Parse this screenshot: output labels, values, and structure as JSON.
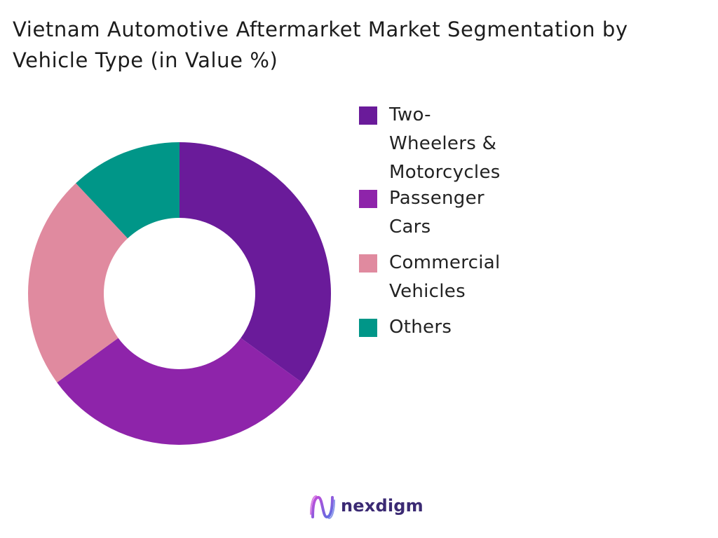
{
  "chart_data": {
    "type": "donut",
    "title": "Vietnam Automotive Aftermarket Market Segmentation by Vehicle Type (in Value %)",
    "title_lines": [
      "Vietnam Automotive Aftermarket Market Segmentation by",
      "Vehicle Type (in Value %)"
    ],
    "categories": [
      "Two-Wheelers & Motorcycles",
      "Passenger Cars",
      "Commercial Vehicles",
      "Others"
    ],
    "legend_labels": [
      "Two-Wheelers &\nMotorcycles",
      "Passenger Cars",
      "Commercial Vehicles",
      "Others"
    ],
    "values": [
      35,
      30,
      23,
      12
    ],
    "colors": [
      "#6a1b9a",
      "#8e24aa",
      "#e08a9f",
      "#009688"
    ],
    "legend_position": "right",
    "start_angle": "top",
    "direction": "clockwise"
  },
  "branding": {
    "name": "nexdigm",
    "logo_icon": "nexdigm-logo-icon",
    "logo_colors": [
      "#c44ad9",
      "#5b6ee1",
      "#3b2a73"
    ]
  }
}
